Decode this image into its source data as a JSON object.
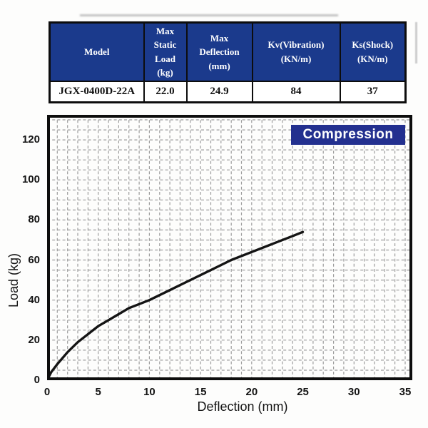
{
  "table": {
    "headers": [
      {
        "label": "Model"
      },
      {
        "label": "Max\nStatic\nLoad\n(kg)"
      },
      {
        "label": "Max\nDeflection\n(mm)"
      },
      {
        "label": "Kv(Vibration)\n(KN/m)"
      },
      {
        "label": "Ks(Shock)\n(KN/m)"
      }
    ],
    "rows": [
      {
        "model": "JGX-0400D-22A",
        "max_static_load": "22.0",
        "max_deflection": "24.9",
        "kv_vibration": "84",
        "ks_shock": "37"
      }
    ]
  },
  "chart_data": {
    "type": "line",
    "title": "Compression",
    "xlabel": "Deflection (mm)",
    "ylabel": "Load (kg)",
    "xlim": [
      0,
      35.7
    ],
    "ylim": [
      0,
      132.5
    ],
    "xticks": [
      0,
      5,
      10,
      15,
      20,
      25,
      30,
      35
    ],
    "yticks": [
      0,
      20,
      40,
      60,
      80,
      100,
      120
    ],
    "grid": {
      "x_step": 1,
      "y_step": 5,
      "style": "dashed",
      "on": true
    },
    "legend_position": "top-right",
    "series": [
      {
        "name": "Compression",
        "points": [
          [
            0,
            0
          ],
          [
            0.4,
            4
          ],
          [
            1,
            8
          ],
          [
            1.5,
            11
          ],
          [
            2,
            14
          ],
          [
            3,
            19
          ],
          [
            4,
            23
          ],
          [
            5,
            27
          ],
          [
            6,
            30
          ],
          [
            7,
            33
          ],
          [
            8,
            36
          ],
          [
            9,
            38
          ],
          [
            10,
            40
          ],
          [
            12,
            45
          ],
          [
            14,
            50
          ],
          [
            16,
            55
          ],
          [
            18,
            60
          ],
          [
            20,
            64
          ],
          [
            22,
            68
          ],
          [
            24,
            72
          ],
          [
            25,
            74
          ]
        ]
      }
    ]
  },
  "colors": {
    "table_header_bg": "#1b3a8c",
    "table_header_text": "#ffffff",
    "legend_bg": "#23308f",
    "legend_text": "#ffffff",
    "curve": "#141414",
    "grid": "#9c9c9c",
    "border": "#0d0d0d"
  }
}
